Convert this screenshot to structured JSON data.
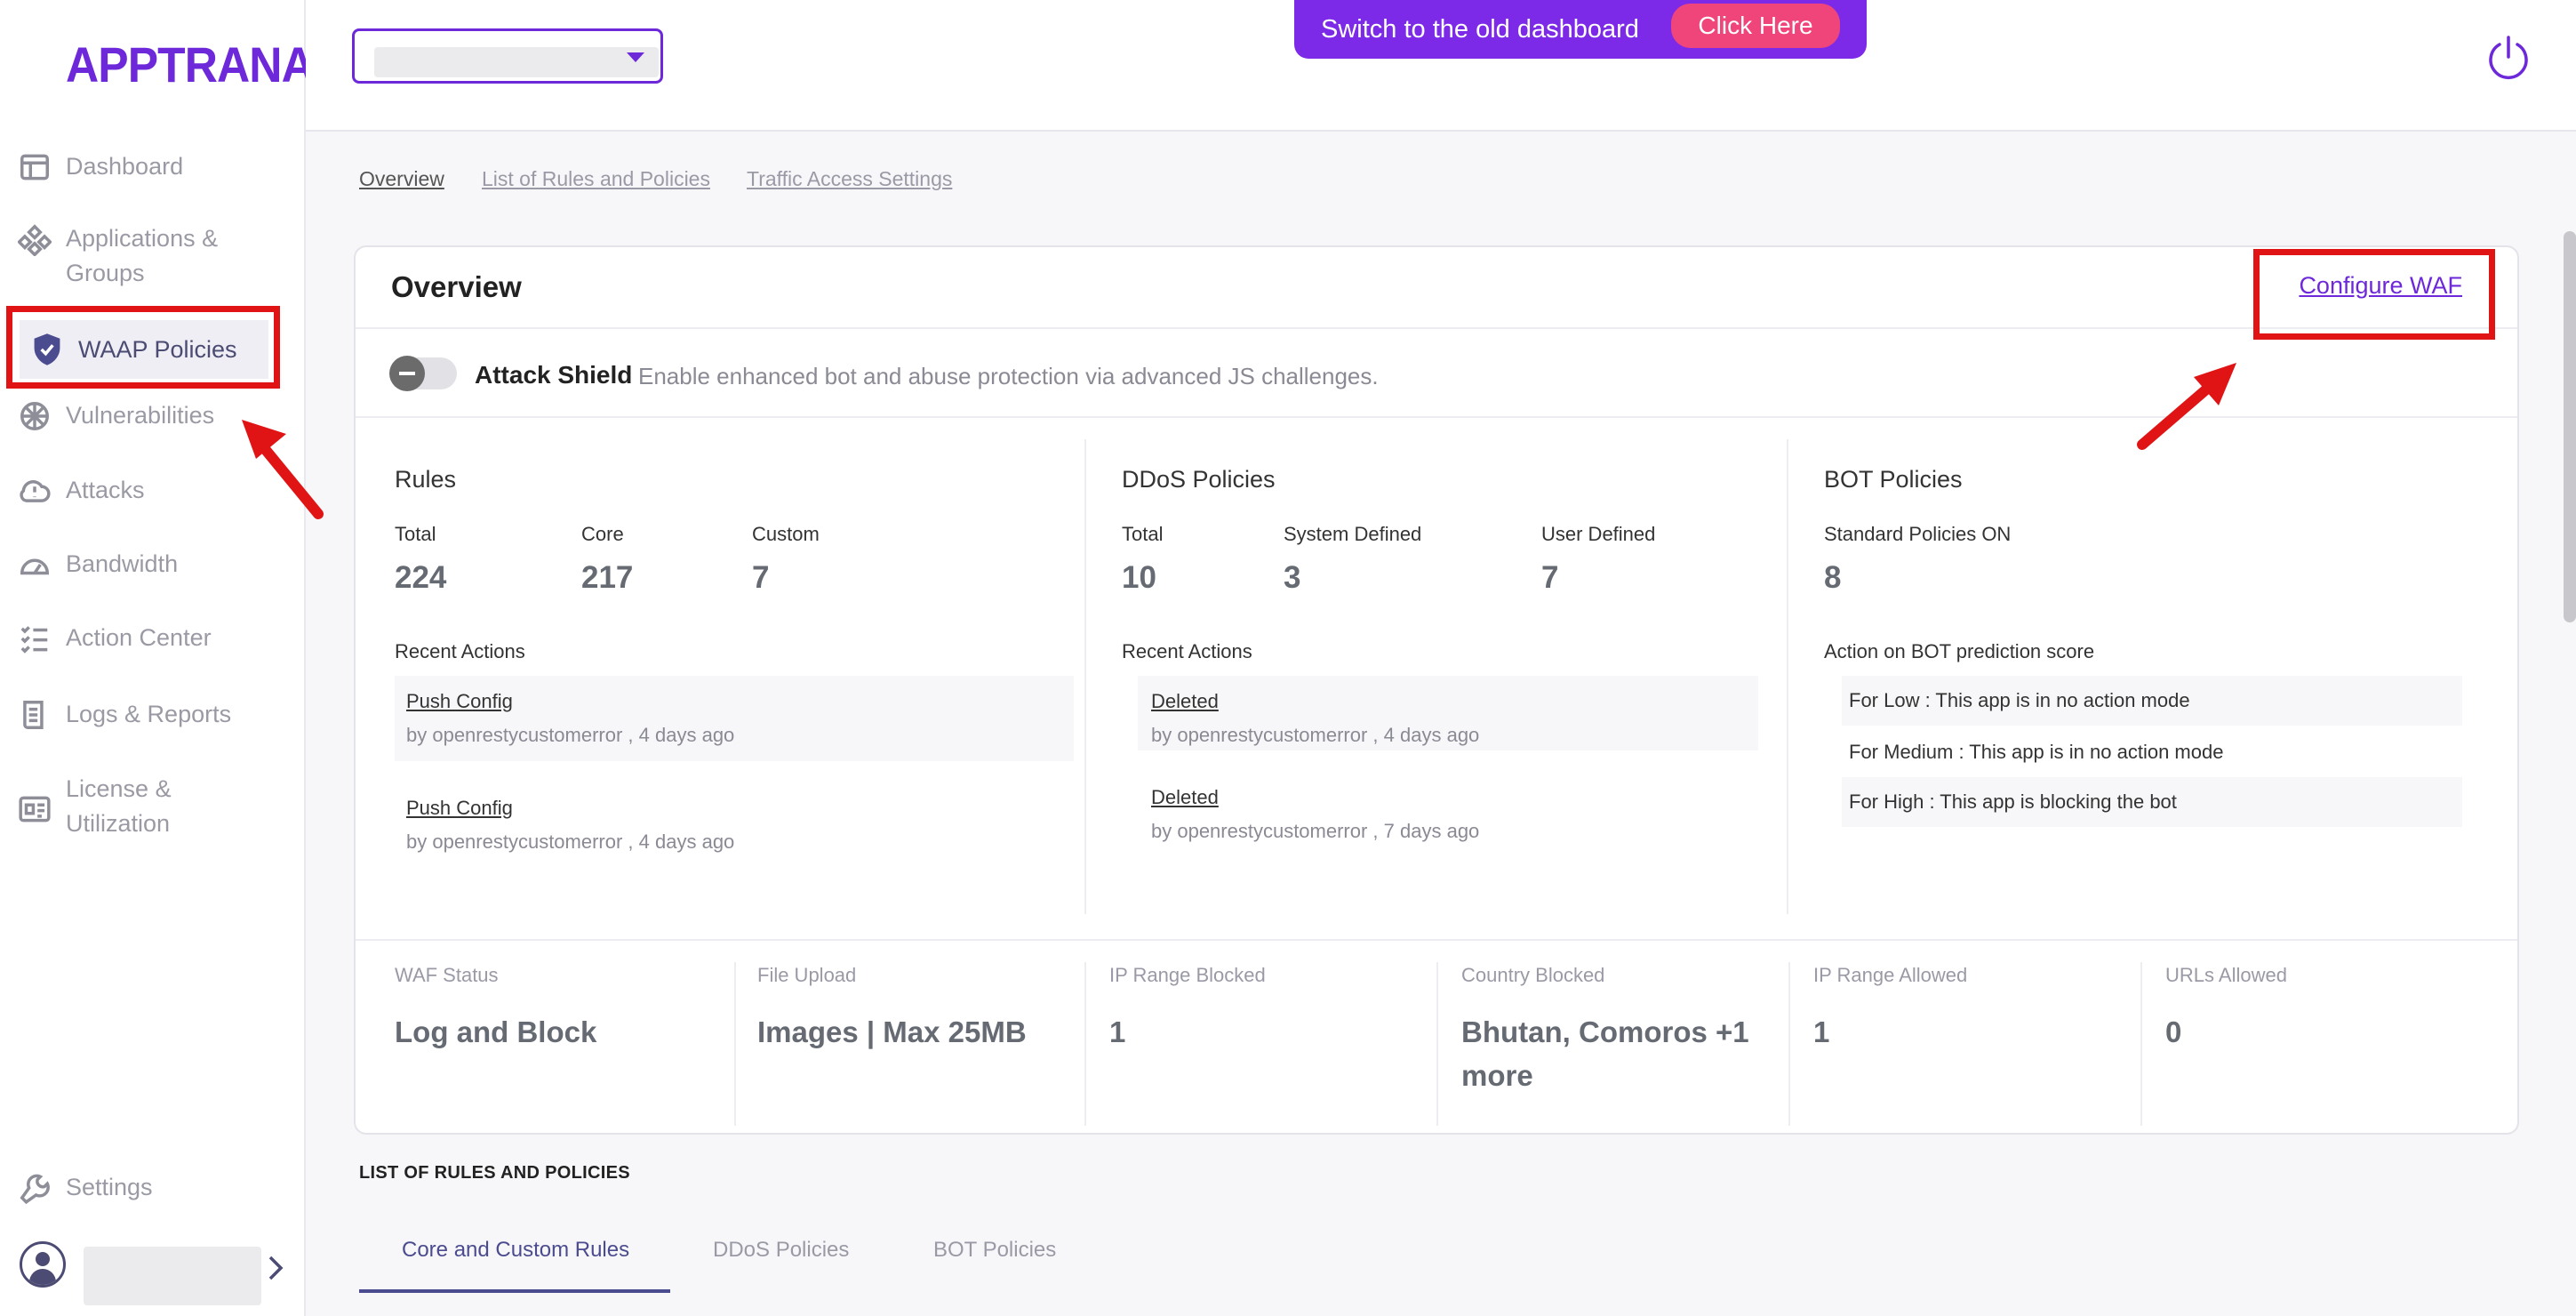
{
  "brand": {
    "name": "APPTRANA",
    "accent": "#6d28d9",
    "highlight": "#e01414"
  },
  "sidebar": {
    "items": [
      {
        "label": "Dashboard",
        "icon": "layout-icon"
      },
      {
        "label": "Applications & Groups",
        "icon": "apps-icon"
      },
      {
        "label": "WAAP Policies",
        "icon": "shield-icon",
        "active": true
      },
      {
        "label": "Vulnerabilities",
        "icon": "bug-icon"
      },
      {
        "label": "Attacks",
        "icon": "cloud-alert-icon"
      },
      {
        "label": "Bandwidth",
        "icon": "gauge-icon"
      },
      {
        "label": "Action Center",
        "icon": "checklist-icon"
      },
      {
        "label": "Logs & Reports",
        "icon": "logs-icon"
      },
      {
        "label": "License & Utilization",
        "icon": "license-icon"
      }
    ],
    "settings_label": "Settings"
  },
  "topbar": {
    "switch_text": "Switch to the old dashboard",
    "click_here": "Click Here"
  },
  "subnav": {
    "tabs": [
      "Overview",
      "List of Rules and Policies",
      "Traffic Access Settings"
    ]
  },
  "overview": {
    "title": "Overview",
    "configure_waf": "Configure WAF",
    "attack_shield": {
      "label": "Attack Shield",
      "description": "Enable enhanced bot and abuse protection via advanced JS challenges."
    },
    "rules": {
      "title": "Rules",
      "total_label": "Total",
      "total": "224",
      "core_label": "Core",
      "core": "217",
      "custom_label": "Custom",
      "custom": "7",
      "recent_label": "Recent Actions",
      "actions": [
        {
          "title": "Push Config",
          "by": "by openrestycustomerror , 4 days ago"
        },
        {
          "title": "Push Config",
          "by": "by openrestycustomerror , 4 days ago"
        }
      ]
    },
    "ddos": {
      "title": "DDoS Policies",
      "total_label": "Total",
      "total": "10",
      "system_label": "System Defined",
      "system": "3",
      "user_label": "User Defined",
      "user": "7",
      "recent_label": "Recent Actions",
      "actions": [
        {
          "title": "Deleted",
          "by": "by openrestycustomerror , 4 days ago"
        },
        {
          "title": "Deleted",
          "by": "by openrestycustomerror , 7 days ago"
        }
      ]
    },
    "bot": {
      "title": "BOT Policies",
      "standard_label": "Standard Policies ON",
      "standard": "8",
      "prediction_label": "Action on BOT prediction score",
      "rows": [
        "For Low : This app is in no action mode",
        "For Medium : This app is in no action mode",
        "For High : This app is blocking the bot"
      ]
    },
    "stats": [
      {
        "label": "WAF Status",
        "value": "Log and Block"
      },
      {
        "label": "File Upload",
        "value": "Images | Max 25MB"
      },
      {
        "label": "IP Range Blocked",
        "value": "1"
      },
      {
        "label": "Country Blocked",
        "value": "Bhutan, Comoros +1 more"
      },
      {
        "label": "IP Range Allowed",
        "value": "1"
      },
      {
        "label": "URLs Allowed",
        "value": "0"
      }
    ]
  },
  "list": {
    "heading": "LIST OF RULES AND POLICIES",
    "tabs": [
      "Core and Custom Rules",
      "DDoS Policies",
      "BOT Policies"
    ]
  }
}
